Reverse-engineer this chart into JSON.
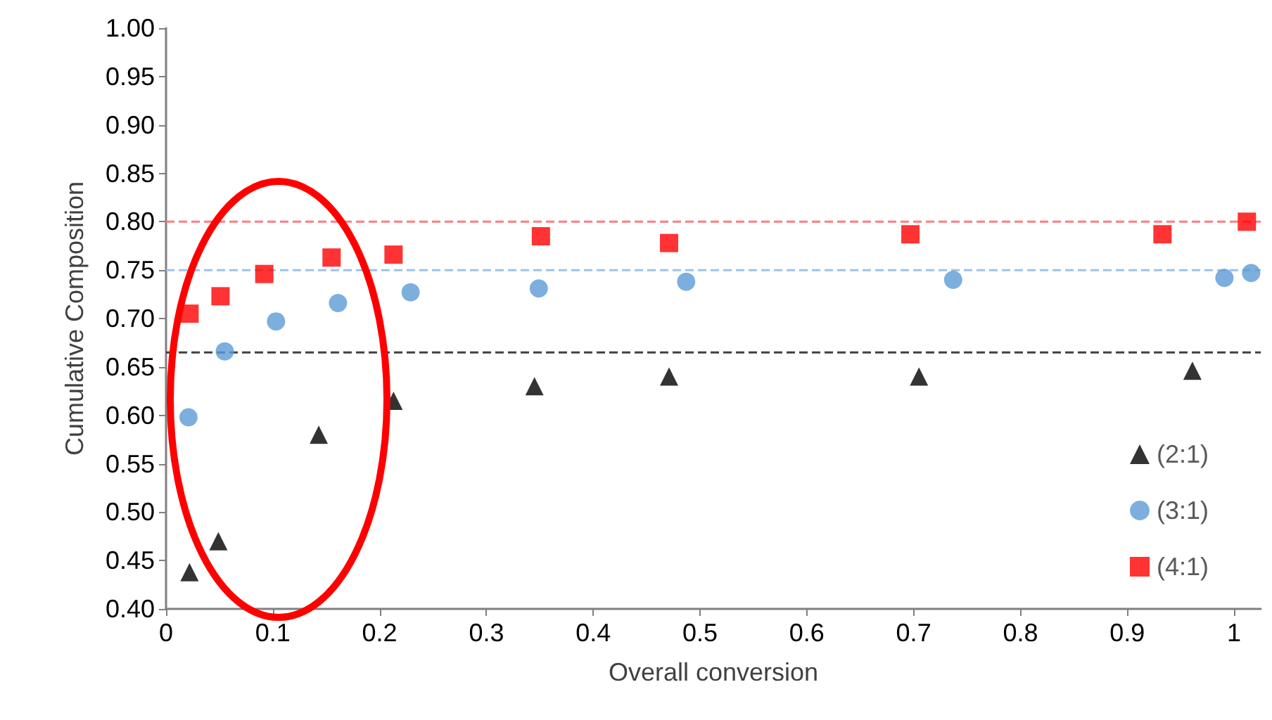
{
  "chart_data": {
    "type": "scatter",
    "xlabel": "Overall conversion",
    "ylabel": "Cumulative Composition",
    "xlim": [
      0,
      1.025
    ],
    "xticks": [
      0,
      0.1,
      0.2,
      0.3,
      0.4,
      0.5,
      0.6,
      0.7,
      0.8,
      0.9,
      1
    ],
    "ylim": [
      0.4,
      1.0
    ],
    "yticks": [
      {
        "value": 0.4,
        "label": "0.40"
      },
      {
        "value": 0.45,
        "label": "0.45"
      },
      {
        "value": 0.5,
        "label": "0.50"
      },
      {
        "value": 0.55,
        "label": "0.55"
      },
      {
        "value": 0.6,
        "label": "0.60"
      },
      {
        "value": 0.65,
        "label": "0.65"
      },
      {
        "value": 0.7,
        "label": "0.70"
      },
      {
        "value": 0.75,
        "label": "0.75"
      },
      {
        "value": 0.8,
        "label": "0.80"
      },
      {
        "value": 0.85,
        "label": "0.85"
      },
      {
        "value": 0.9,
        "label": "0.90"
      },
      {
        "value": 0.95,
        "label": "0.95"
      },
      {
        "value": 1.0,
        "label": "1.00"
      }
    ],
    "grid": false,
    "legend": "bottom right",
    "series": [
      {
        "name": "(2:1)",
        "color": "#000000",
        "marker": "triangle",
        "x": [
          0.022,
          0.049,
          0.143,
          0.213,
          0.345,
          0.471,
          0.705,
          0.961
        ],
        "values": [
          0.438,
          0.47,
          0.58,
          0.615,
          0.63,
          0.64,
          0.64,
          0.646
        ]
      },
      {
        "name": "(3:1)",
        "color": "#5b9bd5",
        "marker": "circle",
        "x": [
          0.021,
          0.055,
          0.103,
          0.161,
          0.229,
          0.349,
          0.487,
          0.737,
          0.991,
          1.016
        ],
        "values": [
          0.598,
          0.666,
          0.697,
          0.716,
          0.727,
          0.731,
          0.738,
          0.74,
          0.742,
          0.747
        ]
      },
      {
        "name": "(4:1)",
        "color": "#ff0000",
        "marker": "square",
        "x": [
          0.022,
          0.051,
          0.092,
          0.155,
          0.213,
          0.351,
          0.471,
          0.697,
          0.933,
          1.012
        ],
        "values": [
          0.705,
          0.723,
          0.746,
          0.763,
          0.766,
          0.785,
          0.778,
          0.787,
          0.787,
          0.8
        ]
      }
    ],
    "ref_lines": [
      {
        "axis": "y",
        "value": 0.665,
        "color": "#404040",
        "line_style": "dashed"
      },
      {
        "axis": "y",
        "value": 0.75,
        "color": "#9dc3e6",
        "line_style": "dashed"
      },
      {
        "axis": "y",
        "value": 0.8,
        "color": "#ff7c80",
        "line_style": "dashed"
      }
    ]
  }
}
